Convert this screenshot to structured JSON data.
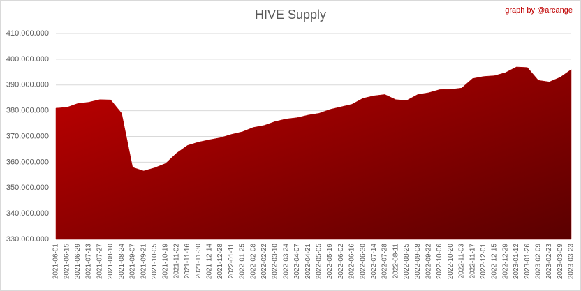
{
  "chart_data": {
    "type": "area",
    "title": "HIVE Supply",
    "credit": "graph by @arcange",
    "categories": [
      "2021-06-01",
      "2021-06-15",
      "2021-06-29",
      "2021-07-13",
      "2021-07-27",
      "2021-08-10",
      "2021-08-24",
      "2021-09-07",
      "2021-09-21",
      "2021-10-05",
      "2021-10-19",
      "2021-11-02",
      "2021-11-16",
      "2021-11-30",
      "2021-12-14",
      "2021-12-28",
      "2022-01-11",
      "2022-01-25",
      "2022-02-08",
      "2022-02-22",
      "2022-03-10",
      "2022-03-24",
      "2022-04-07",
      "2022-04-21",
      "2022-05-05",
      "2022-05-19",
      "2022-06-02",
      "2022-06-16",
      "2022-06-30",
      "2022-07-14",
      "2022-07-28",
      "2022-08-11",
      "2022-08-25",
      "2022-09-08",
      "2022-09-22",
      "2022-10-06",
      "2022-10-20",
      "2022-11-03",
      "2022-11-17",
      "2022-12-01",
      "2022-12-15",
      "2022-12-29",
      "2023-01-12",
      "2023-01-26",
      "2023-02-09",
      "2023-02-23",
      "2023-03-09",
      "2023-03-23"
    ],
    "color": "#b00000",
    "values": [
      381000000,
      381300000,
      382800000,
      383300000,
      384300000,
      384200000,
      379000000,
      358000000,
      356600000,
      357800000,
      359500000,
      363500000,
      366500000,
      367800000,
      368700000,
      369500000,
      370800000,
      371800000,
      373500000,
      374300000,
      375800000,
      376800000,
      377300000,
      378300000,
      379000000,
      380500000,
      381500000,
      382500000,
      384800000,
      385800000,
      386300000,
      384300000,
      384000000,
      386300000,
      387000000,
      388200000,
      388300000,
      388800000,
      392500000,
      393300000,
      393600000,
      394800000,
      397000000,
      396800000,
      391800000,
      391200000,
      393000000,
      396000000
    ],
    "ylim": [
      330000000,
      410000000
    ],
    "yticks": [
      {
        "value": 330000000,
        "label": "330.000.000"
      },
      {
        "value": 340000000,
        "label": "340.000.000"
      },
      {
        "value": 350000000,
        "label": "350.000.000"
      },
      {
        "value": 360000000,
        "label": "360.000.000"
      },
      {
        "value": 370000000,
        "label": "370.000.000"
      },
      {
        "value": 380000000,
        "label": "380.000.000"
      },
      {
        "value": 390000000,
        "label": "390.000.000"
      },
      {
        "value": 400000000,
        "label": "400.000.000"
      },
      {
        "value": 410000000,
        "label": "410.000.000"
      }
    ],
    "grid": true
  }
}
